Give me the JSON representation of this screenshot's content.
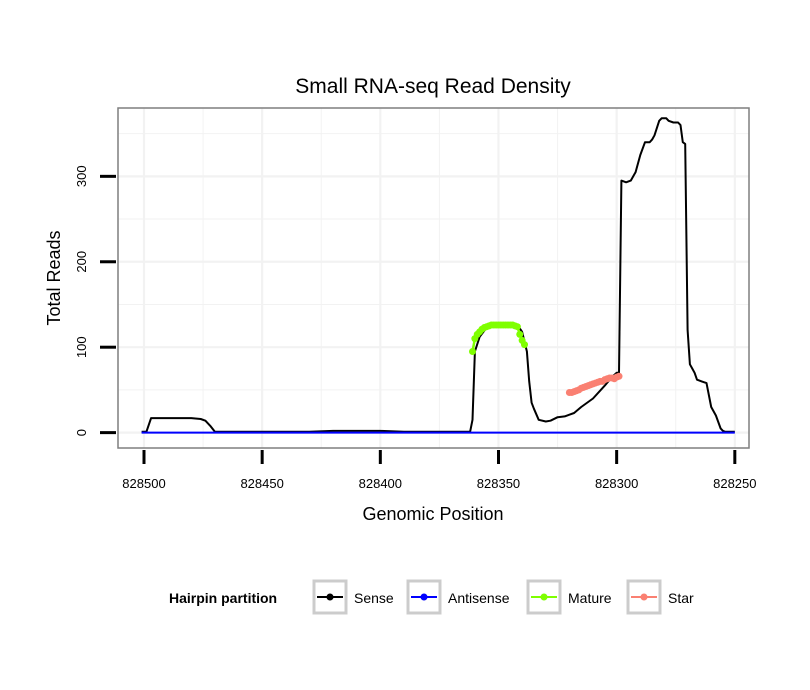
{
  "chart_data": {
    "type": "line",
    "title": "Small RNA-seq Read Density",
    "xlabel": "Genomic Position",
    "ylabel": "Total Reads",
    "x_reversed": true,
    "xlim": [
      828511,
      828244
    ],
    "ylim": [
      -18,
      380
    ],
    "x_ticks": [
      828500,
      828450,
      828400,
      828350,
      828300,
      828250
    ],
    "x_tick_labels": [
      "828500",
      "828450",
      "828400",
      "828350",
      "828300",
      "828250"
    ],
    "y_ticks": [
      0,
      100,
      200,
      300
    ],
    "y_tick_labels": [
      "0",
      "100",
      "200",
      "300"
    ],
    "grid": true,
    "legend": {
      "title": "Hairpin partition",
      "position": "bottom",
      "entries": [
        {
          "label": "Sense",
          "color": "#000000"
        },
        {
          "label": "Antisense",
          "color": "#0000ff"
        },
        {
          "label": "Mature",
          "color": "#7fff00"
        },
        {
          "label": "Star",
          "color": "#fa8072"
        }
      ]
    },
    "series": [
      {
        "name": "Sense",
        "color": "#000000",
        "style": "line",
        "x": [
          828501,
          828499,
          828497,
          828490,
          828480,
          828476,
          828474,
          828472,
          828470,
          828460,
          828450,
          828440,
          828430,
          828420,
          828410,
          828400,
          828390,
          828370,
          828362,
          828361,
          828360,
          828358,
          828355,
          828350,
          828345,
          828342,
          828340,
          828338,
          828337,
          828336,
          828335,
          828333,
          828330,
          828328,
          828325,
          828322,
          828320,
          828318,
          828315,
          828310,
          828305,
          828302,
          828300,
          828299,
          828298,
          828296,
          828294,
          828292,
          828290,
          828288,
          828286,
          828285,
          828284,
          828282,
          828281,
          828280,
          828279,
          828278,
          828276,
          828274,
          828273,
          828272,
          828271,
          828270,
          828269,
          828268,
          828267,
          828266,
          828264,
          828262,
          828260,
          828258,
          828256,
          828255,
          828254,
          828253,
          828252,
          828250
        ],
        "y": [
          1,
          1,
          17,
          17,
          17,
          16,
          14,
          8,
          1,
          1,
          1,
          1,
          1,
          2,
          2,
          2,
          1,
          1,
          1,
          15,
          95,
          112,
          123,
          126,
          126,
          126,
          118,
          95,
          60,
          35,
          28,
          15,
          13,
          14,
          18,
          19,
          21,
          23,
          30,
          40,
          55,
          65,
          70,
          70,
          295,
          293,
          295,
          305,
          325,
          340,
          340,
          343,
          348,
          365,
          368,
          368,
          368,
          365,
          363,
          363,
          360,
          340,
          338,
          120,
          80,
          75,
          70,
          62,
          60,
          58,
          30,
          20,
          5,
          2,
          1,
          1,
          1,
          1
        ]
      },
      {
        "name": "Antisense",
        "color": "#0000ff",
        "style": "line",
        "x": [
          828501,
          828250
        ],
        "y": [
          0,
          0
        ]
      },
      {
        "name": "Mature",
        "color": "#7fff00",
        "style": "points",
        "x": [
          828361,
          828360,
          828359,
          828358,
          828357,
          828356,
          828355,
          828354,
          828353,
          828352,
          828351,
          828350,
          828349,
          828348,
          828347,
          828346,
          828345,
          828344,
          828343,
          828342,
          828341,
          828340,
          828339
        ],
        "y": [
          95,
          110,
          115,
          118,
          121,
          123,
          124,
          125,
          126,
          126,
          126,
          126,
          126,
          126,
          126,
          126,
          126,
          126,
          125,
          124,
          115,
          108,
          103
        ]
      },
      {
        "name": "Star",
        "color": "#fa8072",
        "style": "points",
        "x": [
          828320,
          828319,
          828318,
          828317,
          828316,
          828315,
          828314,
          828313,
          828312,
          828311,
          828310,
          828309,
          828308,
          828307,
          828306,
          828305,
          828304,
          828303,
          828302,
          828301,
          828300,
          828299
        ],
        "y": [
          47,
          47,
          48,
          49,
          50,
          52,
          53,
          54,
          55,
          56,
          57,
          58,
          59,
          60,
          60,
          62,
          63,
          64,
          64,
          63,
          65,
          66
        ]
      }
    ]
  }
}
